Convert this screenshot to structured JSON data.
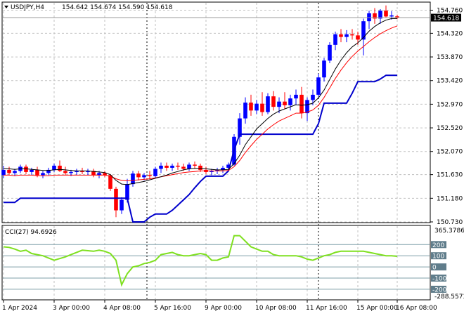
{
  "header": {
    "symbol": "USDJPY,H4",
    "ohlc": "154.642 154.674 154.590 154.618"
  },
  "price_tag": "154.618",
  "cci": {
    "label": "CCI(27) 94.6926",
    "scale_max": "365.3786",
    "scale_min": "-288.5573",
    "levels": [
      "200",
      "100",
      "0",
      "-100",
      "-200"
    ]
  },
  "colors": {
    "bull_body": "#0000ff",
    "bear_body": "#ff0000",
    "ma_fast": "#000000",
    "ma_slow": "#ff0000",
    "support": "#0000cc",
    "cci_line": "#7fe020",
    "level_tag": "#607d8b",
    "grid": "#c0c0c0"
  },
  "chart_data": {
    "type": "candlestick",
    "price_axis": {
      "ticks": [
        "154.760",
        "154.320",
        "153.870",
        "153.420",
        "152.970",
        "152.520",
        "152.070",
        "151.630",
        "151.180",
        "150.730"
      ],
      "range": [
        150.73,
        154.9
      ]
    },
    "x_ticks": [
      "1 Apr 2024",
      "3 Apr 00:00",
      "4 Apr 08:00",
      "5 Apr 16:00",
      "9 Apr 00:00",
      "10 Apr 08:00",
      "11 Apr 16:00",
      "15 Apr 00:00",
      "16 Apr 08:00"
    ],
    "candles": [
      [
        151.62,
        151.8,
        151.56,
        151.72
      ],
      [
        151.72,
        151.78,
        151.62,
        151.66
      ],
      [
        151.66,
        151.74,
        151.6,
        151.7
      ],
      [
        151.7,
        151.82,
        151.66,
        151.78
      ],
      [
        151.78,
        151.82,
        151.64,
        151.68
      ],
      [
        151.68,
        151.76,
        151.62,
        151.72
      ],
      [
        151.72,
        151.78,
        151.58,
        151.62
      ],
      [
        151.62,
        151.7,
        151.56,
        151.66
      ],
      [
        151.66,
        151.76,
        151.62,
        151.72
      ],
      [
        151.72,
        151.84,
        151.68,
        151.8
      ],
      [
        151.8,
        151.9,
        151.68,
        151.7
      ],
      [
        151.7,
        151.78,
        151.62,
        151.66
      ],
      [
        151.66,
        151.72,
        151.6,
        151.68
      ],
      [
        151.68,
        151.74,
        151.62,
        151.7
      ],
      [
        151.7,
        151.76,
        151.64,
        151.68
      ],
      [
        151.68,
        151.74,
        151.62,
        151.7
      ],
      [
        151.7,
        151.74,
        151.58,
        151.62
      ],
      [
        151.62,
        151.7,
        151.56,
        151.66
      ],
      [
        151.66,
        151.7,
        151.58,
        151.62
      ],
      [
        151.62,
        151.64,
        151.32,
        151.36
      ],
      [
        151.36,
        151.4,
        150.82,
        150.95
      ],
      [
        150.95,
        151.2,
        150.88,
        151.15
      ],
      [
        151.15,
        151.55,
        151.1,
        151.45
      ],
      [
        151.45,
        151.7,
        151.4,
        151.65
      ],
      [
        151.65,
        151.7,
        151.52,
        151.58
      ],
      [
        151.58,
        151.66,
        151.52,
        151.62
      ],
      [
        151.62,
        151.7,
        151.55,
        151.6
      ],
      [
        151.6,
        151.78,
        151.56,
        151.74
      ],
      [
        151.74,
        151.86,
        151.66,
        151.8
      ],
      [
        151.8,
        151.86,
        151.7,
        151.76
      ],
      [
        151.76,
        151.84,
        151.7,
        151.8
      ],
      [
        151.8,
        151.86,
        151.72,
        151.78
      ],
      [
        151.78,
        151.84,
        151.7,
        151.74
      ],
      [
        151.74,
        151.86,
        151.7,
        151.82
      ],
      [
        151.82,
        151.88,
        151.74,
        151.8
      ],
      [
        151.8,
        151.84,
        151.68,
        151.72
      ],
      [
        151.72,
        151.78,
        151.64,
        151.68
      ],
      [
        151.68,
        151.74,
        151.62,
        151.7
      ],
      [
        151.7,
        151.76,
        151.64,
        151.72
      ],
      [
        151.72,
        151.8,
        151.66,
        151.76
      ],
      [
        151.76,
        151.86,
        151.7,
        151.82
      ],
      [
        151.82,
        152.4,
        151.8,
        152.35
      ],
      [
        152.35,
        152.8,
        152.2,
        152.7
      ],
      [
        152.7,
        153.1,
        152.6,
        153.0
      ],
      [
        153.0,
        153.15,
        152.75,
        152.85
      ],
      [
        152.85,
        153.05,
        152.78,
        152.98
      ],
      [
        152.98,
        153.2,
        152.75,
        152.82
      ],
      [
        152.82,
        153.18,
        152.78,
        153.12
      ],
      [
        153.12,
        153.22,
        152.85,
        152.92
      ],
      [
        152.92,
        153.1,
        152.8,
        153.02
      ],
      [
        153.02,
        153.2,
        152.88,
        152.95
      ],
      [
        152.95,
        153.15,
        152.85,
        153.08
      ],
      [
        153.08,
        153.25,
        152.95,
        153.15
      ],
      [
        153.15,
        153.3,
        152.7,
        152.8
      ],
      [
        152.8,
        153.1,
        152.65,
        153.05
      ],
      [
        153.05,
        153.25,
        152.95,
        153.15
      ],
      [
        153.15,
        153.55,
        153.1,
        153.48
      ],
      [
        153.48,
        153.85,
        153.4,
        153.8
      ],
      [
        153.8,
        154.15,
        153.75,
        154.1
      ],
      [
        154.1,
        154.35,
        154.0,
        154.3
      ],
      [
        154.3,
        154.4,
        154.15,
        154.25
      ],
      [
        154.25,
        154.38,
        154.15,
        154.3
      ],
      [
        154.3,
        154.4,
        154.2,
        154.28
      ],
      [
        154.28,
        154.35,
        154.1,
        154.2
      ],
      [
        154.2,
        154.6,
        153.9,
        154.55
      ],
      [
        154.55,
        154.75,
        154.4,
        154.7
      ],
      [
        154.7,
        154.8,
        154.5,
        154.6
      ],
      [
        154.6,
        154.78,
        154.5,
        154.75
      ],
      [
        154.75,
        154.85,
        154.62,
        154.64
      ],
      [
        154.64,
        154.74,
        154.58,
        154.66
      ],
      [
        154.642,
        154.674,
        154.59,
        154.618
      ]
    ],
    "ma_fast": [
      151.75,
      151.74,
      151.73,
      151.74,
      151.74,
      151.73,
      151.72,
      151.71,
      151.71,
      151.72,
      151.73,
      151.72,
      151.71,
      151.7,
      151.7,
      151.7,
      151.69,
      151.68,
      151.67,
      151.63,
      151.52,
      151.45,
      151.44,
      151.46,
      151.48,
      151.5,
      151.53,
      151.56,
      151.59,
      151.62,
      151.66,
      151.69,
      151.72,
      151.74,
      151.75,
      151.75,
      151.74,
      151.73,
      151.72,
      151.72,
      151.73,
      151.84,
      152.0,
      152.2,
      152.35,
      152.5,
      152.6,
      152.7,
      152.78,
      152.84,
      152.88,
      152.92,
      152.96,
      152.95,
      152.96,
      152.99,
      153.09,
      153.24,
      153.44,
      153.64,
      153.81,
      153.95,
      154.06,
      154.14,
      154.24,
      154.36,
      154.45,
      154.52,
      154.57,
      154.6,
      154.6
    ],
    "ma_slow": [
      151.62,
      151.62,
      151.61,
      151.62,
      151.62,
      151.62,
      151.61,
      151.61,
      151.61,
      151.62,
      151.62,
      151.62,
      151.62,
      151.62,
      151.62,
      151.62,
      151.62,
      151.62,
      151.62,
      151.6,
      151.55,
      151.52,
      151.51,
      151.52,
      151.53,
      151.54,
      151.55,
      151.57,
      151.59,
      151.61,
      151.63,
      151.65,
      151.67,
      151.68,
      151.69,
      151.7,
      151.7,
      151.7,
      151.7,
      151.7,
      151.71,
      151.78,
      151.9,
      152.05,
      152.18,
      152.3,
      152.4,
      152.5,
      152.58,
      152.65,
      152.7,
      152.75,
      152.8,
      152.8,
      152.82,
      152.86,
      152.95,
      153.1,
      153.28,
      153.46,
      153.62,
      153.76,
      153.88,
      153.98,
      154.07,
      154.16,
      154.24,
      154.31,
      154.37,
      154.42,
      154.46
    ],
    "support": [
      151.1,
      151.1,
      151.1,
      151.18,
      151.18,
      151.18,
      151.18,
      151.18,
      151.18,
      151.18,
      151.18,
      151.18,
      151.18,
      151.18,
      151.18,
      151.18,
      151.18,
      151.18,
      151.18,
      151.18,
      151.18,
      151.18,
      151.18,
      150.73,
      150.73,
      150.73,
      150.82,
      150.88,
      150.88,
      150.88,
      150.95,
      151.05,
      151.15,
      151.25,
      151.38,
      151.5,
      151.6,
      151.6,
      151.6,
      151.6,
      151.7,
      152.1,
      152.4,
      152.4,
      152.4,
      152.4,
      152.4,
      152.4,
      152.4,
      152.4,
      152.4,
      152.4,
      152.4,
      152.4,
      152.4,
      152.4,
      152.6,
      152.99,
      152.99,
      152.99,
      152.99,
      152.99,
      153.18,
      153.4,
      153.4,
      153.4,
      153.4,
      153.45,
      153.52,
      153.52,
      153.52
    ],
    "cci_values": [
      180,
      175,
      160,
      140,
      150,
      120,
      110,
      100,
      80,
      60,
      75,
      90,
      110,
      130,
      150,
      145,
      140,
      150,
      140,
      120,
      60,
      -160,
      -60,
      0,
      10,
      30,
      40,
      60,
      110,
      120,
      130,
      110,
      100,
      100,
      110,
      120,
      110,
      60,
      60,
      80,
      90,
      280,
      280,
      230,
      180,
      160,
      140,
      140,
      110,
      100,
      100,
      100,
      100,
      90,
      70,
      60,
      80,
      100,
      110,
      130,
      140,
      140,
      140,
      140,
      140,
      130,
      120,
      110,
      100,
      100,
      95
    ],
    "cci_range": [
      -288.5573,
      365.3786
    ]
  }
}
